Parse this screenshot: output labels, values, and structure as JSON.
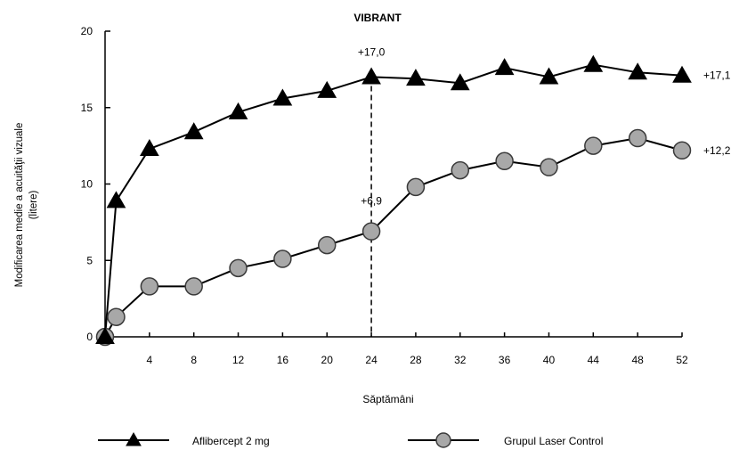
{
  "chart_data": {
    "type": "line",
    "title": "VIBRANT",
    "xlabel": "Săptămâni",
    "ylabel": "Modificarea medie a acuităţii vizuale (litere)",
    "ylabel_lines": [
      "Modificarea medie a acuităţii vizuale",
      "(litere)"
    ],
    "xlim": [
      0,
      52
    ],
    "ylim": [
      0,
      20
    ],
    "xticks": [
      4,
      8,
      12,
      16,
      20,
      24,
      28,
      32,
      36,
      40,
      44,
      48,
      52
    ],
    "yticks": [
      0,
      5,
      10,
      15,
      20
    ],
    "grid": false,
    "legend_position": "bottom",
    "reference_line": {
      "x": 24,
      "style": "dashed"
    },
    "series": [
      {
        "name": "Aflibercept 2 mg",
        "marker": "triangle",
        "x": [
          0,
          1,
          4,
          8,
          12,
          16,
          20,
          24,
          28,
          32,
          36,
          40,
          44,
          48,
          52
        ],
        "y": [
          0,
          8.9,
          12.3,
          13.4,
          14.7,
          15.6,
          16.1,
          17.0,
          16.9,
          16.6,
          17.6,
          17.0,
          17.8,
          17.3,
          17.1
        ]
      },
      {
        "name": "Grupul Laser Control",
        "marker": "circle",
        "x": [
          0,
          1,
          4,
          8,
          12,
          16,
          20,
          24,
          28,
          32,
          36,
          40,
          44,
          48,
          52
        ],
        "y": [
          0,
          1.3,
          3.3,
          3.3,
          4.5,
          5.1,
          6.0,
          6.9,
          9.8,
          10.9,
          11.5,
          11.1,
          12.5,
          13.0,
          12.2
        ]
      }
    ],
    "annotations": [
      {
        "text": "+17,0",
        "series": 0,
        "x": 24,
        "y": 17.0
      },
      {
        "text": "+6,9",
        "series": 1,
        "x": 24,
        "y": 6.9
      },
      {
        "text": "+17,1",
        "series": 0,
        "x": 52,
        "y": 17.1
      },
      {
        "text": "+12,2",
        "series": 1,
        "x": 52,
        "y": 12.2
      }
    ]
  },
  "colors": {
    "line": "#000000",
    "triangle_fill": "#000000",
    "circle_fill": "#a8a8a8",
    "circle_stroke": "#3a3a3a"
  }
}
